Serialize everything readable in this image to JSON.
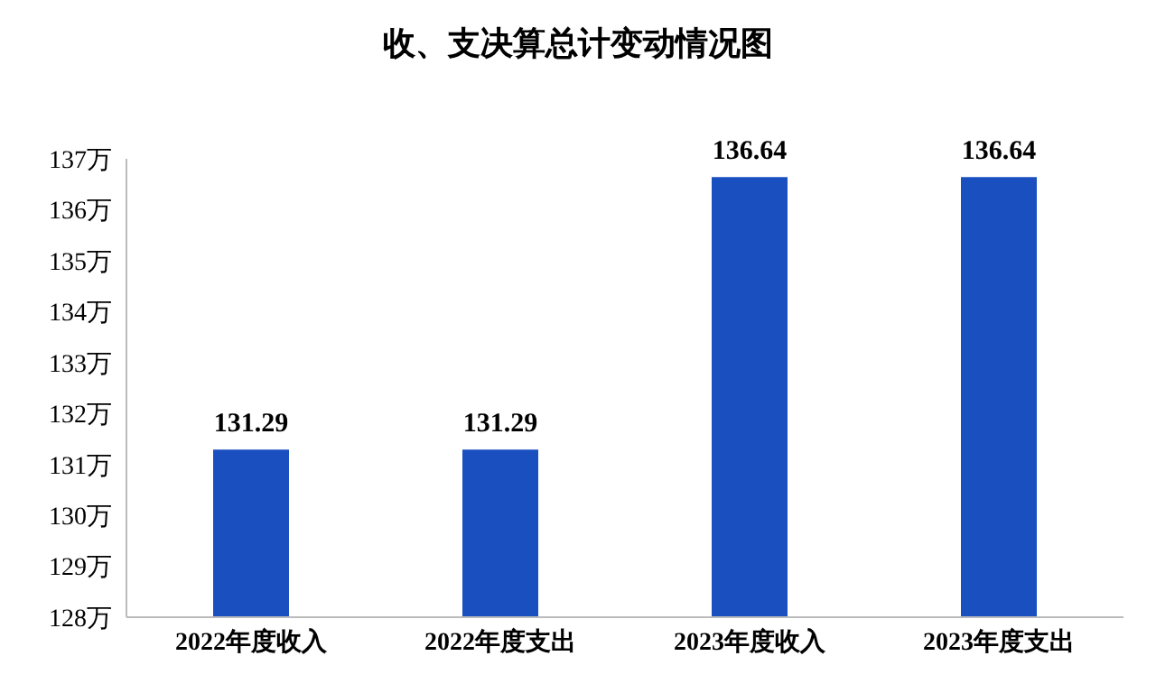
{
  "chart_data": {
    "type": "bar",
    "title": "收、支决算总计变动情况图",
    "categories": [
      "2022年度收入",
      "2022年度支出",
      "2023年度收入",
      "2023年度支出"
    ],
    "values": [
      131.29,
      131.29,
      136.64,
      136.64
    ],
    "color": "#1a4fc0",
    "ylim": [
      128,
      137
    ],
    "yticks": [
      {
        "value": 128,
        "label": "128万"
      },
      {
        "value": 129,
        "label": "129万"
      },
      {
        "value": 130,
        "label": "130万"
      },
      {
        "value": 131,
        "label": "131万"
      },
      {
        "value": 132,
        "label": "132万"
      },
      {
        "value": 133,
        "label": "133万"
      },
      {
        "value": 134,
        "label": "134万"
      },
      {
        "value": 135,
        "label": "135万"
      },
      {
        "value": 136,
        "label": "136万"
      },
      {
        "value": 137,
        "label": "137万"
      }
    ],
    "data_labels": true
  }
}
